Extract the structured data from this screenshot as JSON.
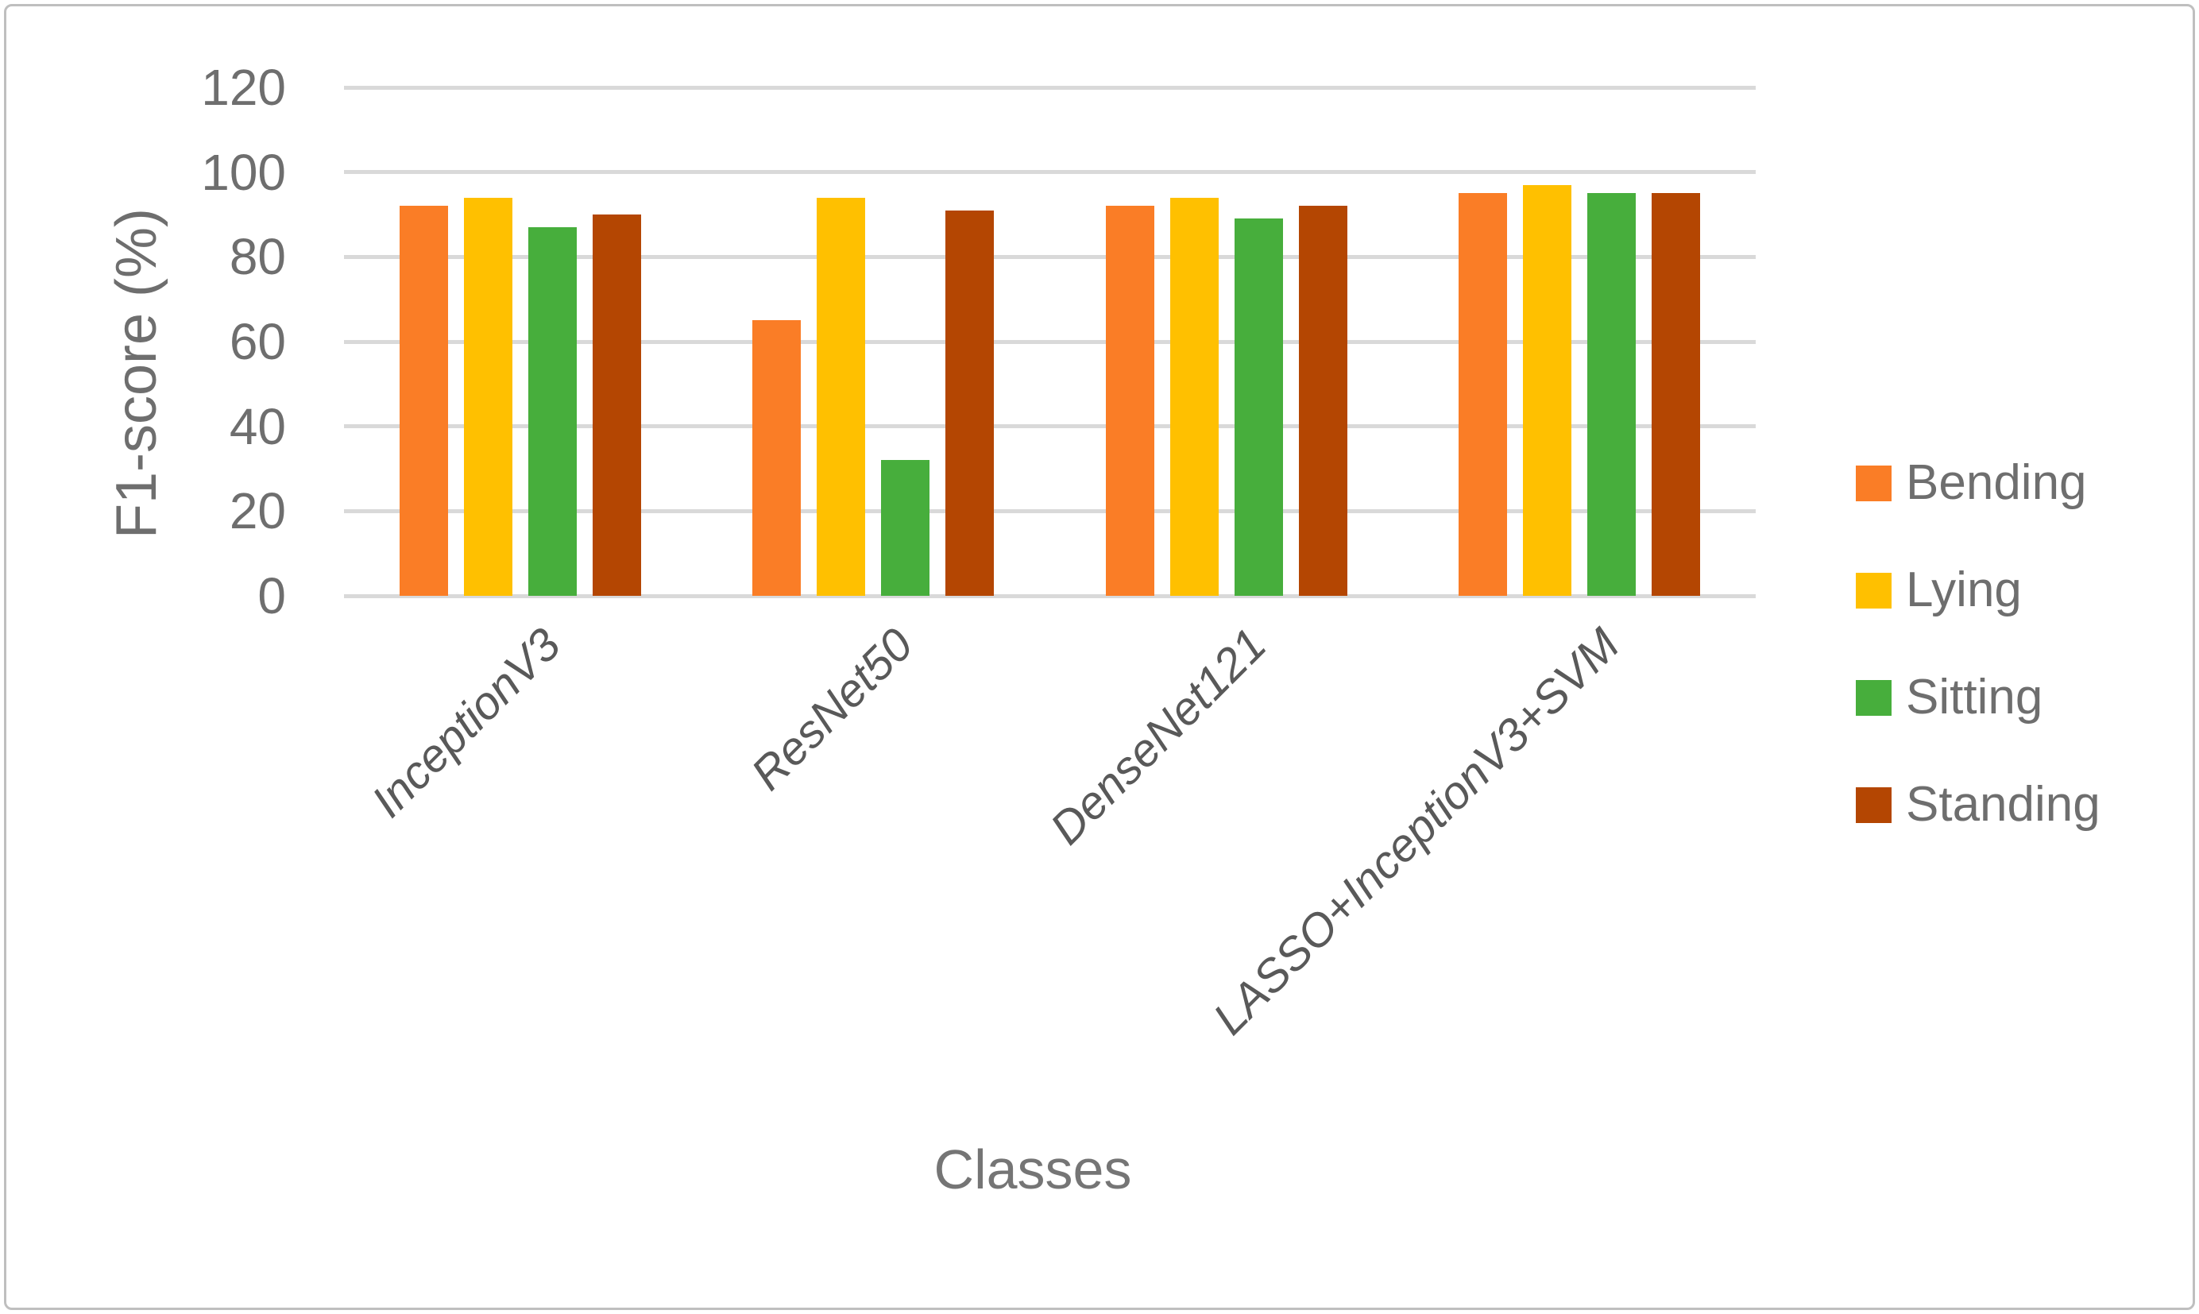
{
  "chart_data": {
    "type": "bar",
    "title": "",
    "xlabel": "Classes",
    "ylabel": "F1-score (%)",
    "categories": [
      "InceptionV3",
      "ResNet50",
      "DenseNet121",
      "LASSO+InceptionV3+SVM"
    ],
    "series": [
      {
        "name": "Bending",
        "color": "#FA7D26",
        "values": [
          92,
          65,
          92,
          95
        ]
      },
      {
        "name": "Lying",
        "color": "#FFC000",
        "values": [
          94,
          94,
          94,
          97
        ]
      },
      {
        "name": "Sitting",
        "color": "#47AE3C",
        "values": [
          87,
          32,
          89,
          95
        ]
      },
      {
        "name": "Standing",
        "color": "#B44602",
        "values": [
          90,
          91,
          92,
          95
        ]
      }
    ],
    "ylim": [
      0,
      120
    ],
    "yticks": [
      0,
      20,
      40,
      60,
      80,
      100,
      120
    ],
    "grid": "horizontal",
    "gridline_color": "#D9D9D9",
    "legend_position": "right",
    "category_label_style": "italic-rotated-45deg"
  },
  "styles": {
    "background": "#FFFFFF",
    "frame_border_color": "#BFBFBF",
    "tick_label_color": "#6E6E6E",
    "axis_title_color": "#6E6E6E",
    "x_title_color": "#757575",
    "category_label_color": "#595959",
    "legend_label_color": "#6E6E6E"
  }
}
